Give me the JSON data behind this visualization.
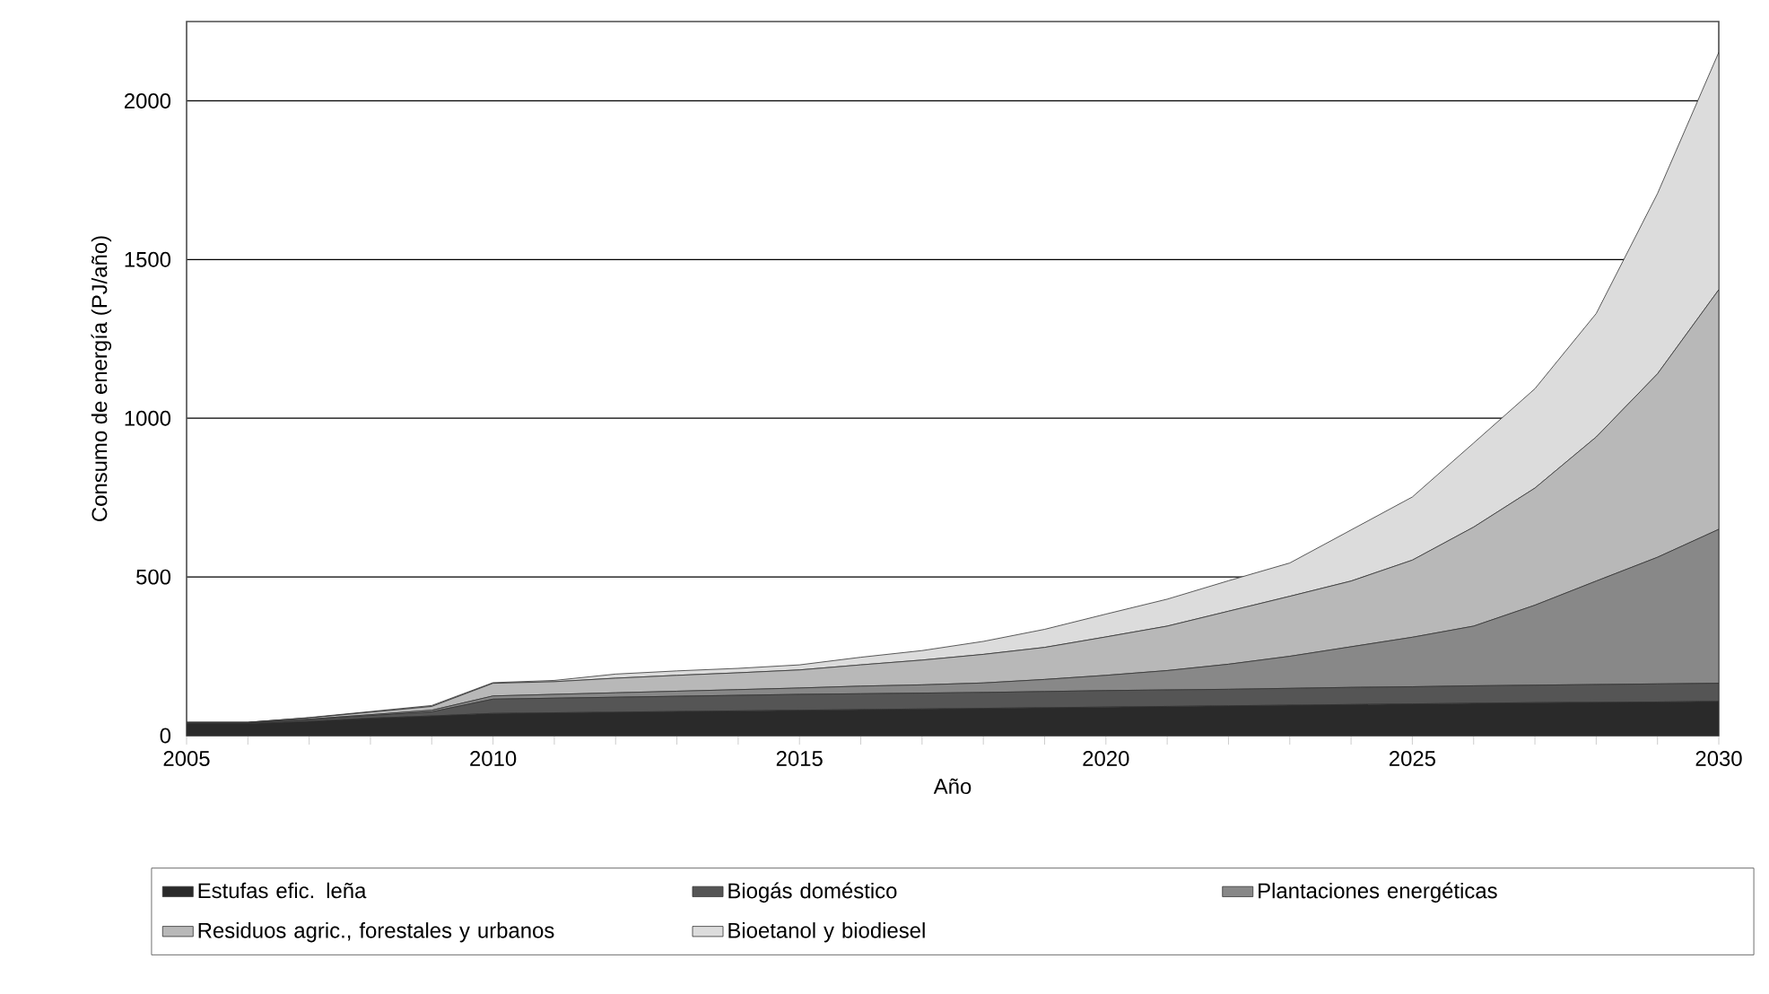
{
  "chart_data": {
    "type": "area",
    "stacked": true,
    "xlabel": "Año",
    "ylabel": "Consumo de energía (PJ/año)",
    "x": [
      2005,
      2006,
      2007,
      2008,
      2009,
      2010,
      2011,
      2012,
      2013,
      2014,
      2015,
      2016,
      2017,
      2018,
      2019,
      2020,
      2021,
      2022,
      2023,
      2024,
      2025,
      2026,
      2027,
      2028,
      2029,
      2030
    ],
    "series": [
      {
        "name": "Estufas efic. leña",
        "color": "#2a2a2a",
        "values": [
          38,
          38,
          45,
          55,
          62,
          70,
          72,
          74,
          76,
          78,
          80,
          82,
          84,
          86,
          88,
          90,
          92,
          94,
          96,
          98,
          100,
          102,
          104,
          105,
          106,
          108
        ]
      },
      {
        "name": "Biogás doméstico",
        "color": "#555555",
        "values": [
          2,
          2,
          5,
          8,
          13,
          45,
          46,
          47,
          48,
          49,
          50,
          50,
          50,
          50,
          51,
          52,
          52,
          52,
          53,
          54,
          54,
          55,
          55,
          56,
          57,
          57
        ]
      },
      {
        "name": "Plantaciones energéticas",
        "color": "#888888",
        "values": [
          1,
          1,
          2,
          3,
          5,
          10,
          12,
          14,
          16,
          18,
          20,
          24,
          26,
          30,
          38,
          48,
          61,
          79,
          101,
          128,
          156,
          188,
          252,
          326,
          399,
          485
        ]
      },
      {
        "name": "Residuos agric., forestales y urbanos",
        "color": "#b8b8b8",
        "values": [
          1,
          1,
          4,
          8,
          12,
          40,
          40,
          46,
          50,
          53,
          57,
          67,
          78,
          90,
          101,
          121,
          140,
          167,
          189,
          207,
          243,
          312,
          369,
          454,
          578,
          755
        ]
      },
      {
        "name": "Bioetanol y biodiesel",
        "color": "#dcdcdc",
        "values": [
          0,
          0,
          1,
          2,
          3,
          2,
          4,
          13,
          14,
          14,
          16,
          24,
          30,
          41,
          57,
          72,
          85,
          96,
          105,
          161,
          199,
          265,
          313,
          389,
          568,
          748
        ]
      }
    ],
    "xlim": [
      2005,
      2030
    ],
    "xticks": [
      2005,
      {
        "value": 2006,
        "label": null
      },
      {
        "value": 2007,
        "label": null
      },
      {
        "value": 2008,
        "label": null
      },
      {
        "value": 2009,
        "label": null
      },
      2010,
      {
        "value": 2011,
        "label": null
      },
      {
        "value": 2012,
        "label": null
      },
      {
        "value": 2013,
        "label": null
      },
      {
        "value": 2014,
        "label": null
      },
      2015,
      {
        "value": 2016,
        "label": null
      },
      {
        "value": 2017,
        "label": null
      },
      {
        "value": 2018,
        "label": null
      },
      {
        "value": 2019,
        "label": null
      },
      2020,
      {
        "value": 2021,
        "label": null
      },
      {
        "value": 2022,
        "label": null
      },
      {
        "value": 2023,
        "label": null
      },
      {
        "value": 2024,
        "label": null
      },
      2025,
      {
        "value": 2026,
        "label": null
      },
      {
        "value": 2027,
        "label": null
      },
      {
        "value": 2028,
        "label": null
      },
      {
        "value": 2029,
        "label": null
      },
      2030
    ],
    "ylim": [
      0,
      2250
    ],
    "yticks": [
      0,
      500,
      1000,
      1500,
      2000
    ],
    "grid": "y",
    "legend": "bottom",
    "marker": "none",
    "line_style": "solid"
  }
}
